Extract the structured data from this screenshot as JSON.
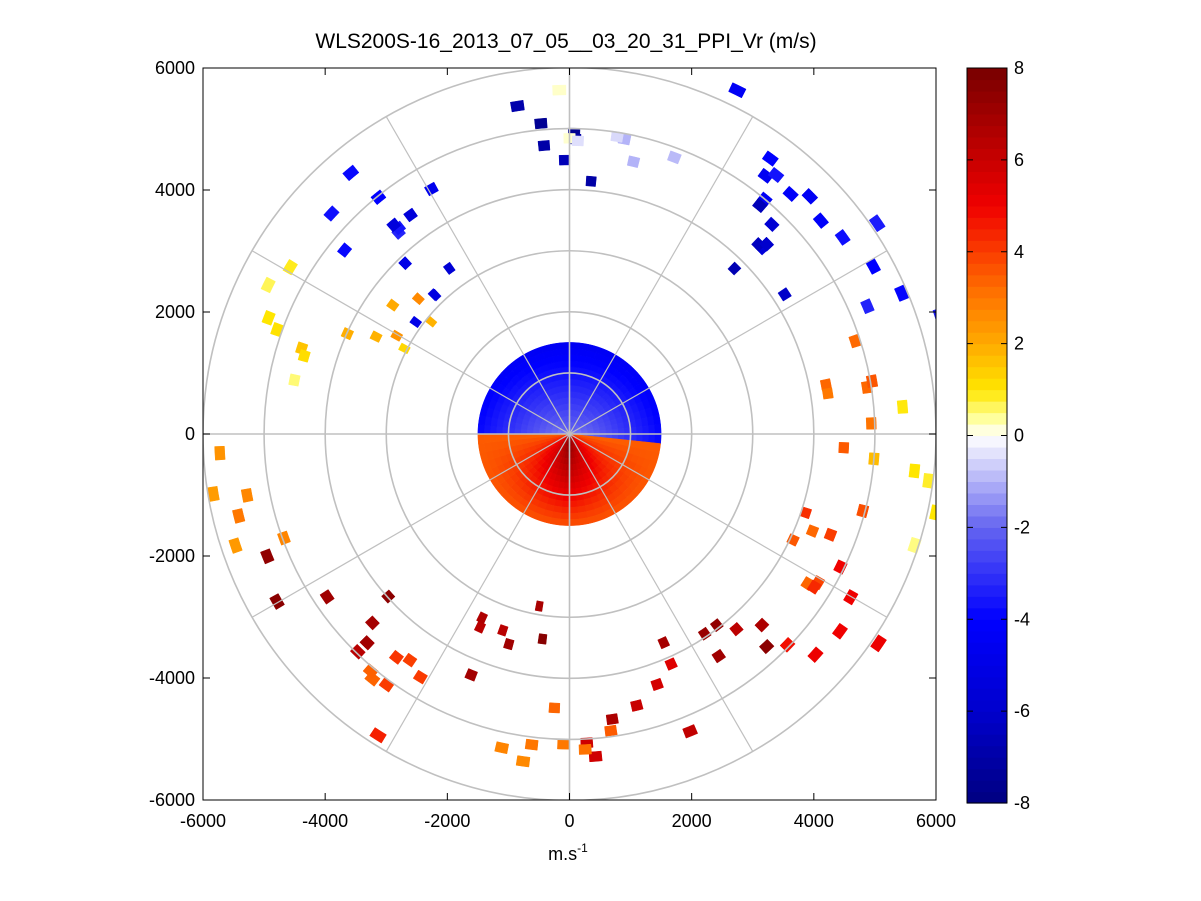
{
  "chart_data": {
    "type": "heatmap",
    "subtype": "polar-ppi",
    "title": "WLS200S-16_2013_07_05__03_20_31_PPI_Vr (m/s)",
    "xlabel": "m.s",
    "xlabel_superscript": "-1",
    "ylabel": "",
    "xlim": [
      -6000,
      6000
    ],
    "ylim": [
      -6000,
      6000
    ],
    "xticks": [
      -6000,
      -4000,
      -2000,
      0,
      2000,
      4000,
      6000
    ],
    "yticks": [
      -6000,
      -4000,
      -2000,
      0,
      2000,
      4000,
      6000
    ],
    "xtick_labels": [
      "-6000",
      "-4000",
      "-2000",
      "0",
      "2000",
      "4000",
      "6000"
    ],
    "ytick_labels": [
      "-6000",
      "-4000",
      "-2000",
      "0",
      "2000",
      "4000",
      "6000"
    ],
    "polar_grid": {
      "range_rings": [
        1000,
        2000,
        3000,
        4000,
        5000,
        6000
      ],
      "spoke_azimuths_deg": [
        0,
        30,
        60,
        90,
        120,
        150,
        180,
        210,
        240,
        270,
        300,
        330
      ],
      "grid": true
    },
    "colorbar": {
      "min": -8,
      "max": 8,
      "ticks": [
        -8,
        -6,
        -4,
        -2,
        0,
        2,
        4,
        6,
        8
      ],
      "tick_labels": [
        "-8",
        "-6",
        "-4",
        "-2",
        "0",
        "2",
        "4",
        "6",
        "8"
      ],
      "placement": "right",
      "colormap": "blue-white-yellow-red"
    },
    "fields": {
      "near_field_max_range_m": 1500,
      "near_field_description_values": [
        {
          "azimuth_from_deg": 270,
          "azimuth_to_deg": 90,
          "velocity_ms": -3
        },
        {
          "azimuth_from_deg": 90,
          "azimuth_to_deg": 270,
          "velocity_ms": 5
        }
      ],
      "far_field_gates": [
        {
          "azimuth_deg": 0,
          "range_m": 4750,
          "velocity_ms": -7
        },
        {
          "azimuth_deg": 8,
          "range_m": 4850,
          "velocity_ms": -0.5
        },
        {
          "azimuth_deg": 35,
          "range_m": 5500,
          "velocity_ms": -4
        },
        {
          "azimuth_deg": 45,
          "range_m": 4400,
          "velocity_ms": -6
        },
        {
          "azimuth_deg": 60,
          "range_m": 5600,
          "velocity_ms": -4
        },
        {
          "azimuth_deg": -40,
          "range_m": 4900,
          "velocity_ms": -4
        },
        {
          "azimuth_deg": -45,
          "range_m": 3800,
          "velocity_ms": -5
        },
        {
          "azimuth_deg": -55,
          "range_m": 3500,
          "velocity_ms": 2
        },
        {
          "azimuth_deg": -70,
          "range_m": 5200,
          "velocity_ms": 1
        },
        {
          "azimuth_deg": 80,
          "range_m": 4200,
          "velocity_ms": 3
        },
        {
          "azimuth_deg": 95,
          "range_m": 5600,
          "velocity_ms": 1
        },
        {
          "azimuth_deg": 110,
          "range_m": 4500,
          "velocity_ms": 4
        },
        {
          "azimuth_deg": 125,
          "range_m": 5400,
          "velocity_ms": 5
        },
        {
          "azimuth_deg": 145,
          "range_m": 4300,
          "velocity_ms": 7
        },
        {
          "azimuth_deg": 165,
          "range_m": 4500,
          "velocity_ms": 6
        },
        {
          "azimuth_deg": 180,
          "range_m": 5000,
          "velocity_ms": 3
        },
        {
          "azimuth_deg": 195,
          "range_m": 3500,
          "velocity_ms": 7
        },
        {
          "azimuth_deg": 215,
          "range_m": 5000,
          "velocity_ms": 4
        },
        {
          "azimuth_deg": 235,
          "range_m": 4700,
          "velocity_ms": 7
        },
        {
          "azimuth_deg": 255,
          "range_m": 5500,
          "velocity_ms": 3
        }
      ]
    }
  }
}
